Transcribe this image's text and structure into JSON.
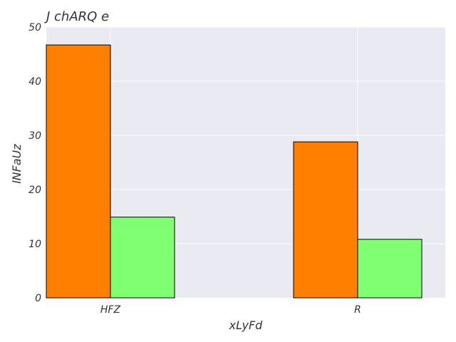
{
  "chart_data": {
    "type": "bar",
    "title": "J chARQ  e",
    "xlabel": "xLyFd",
    "ylabel": "lNFaUz",
    "categories": [
      "HFZ",
      "R"
    ],
    "series": [
      {
        "values": [
          46.7,
          28.8
        ],
        "color": "#ff7f00"
      },
      {
        "values": [
          14.9,
          10.8
        ],
        "color": "#80ff73"
      }
    ],
    "ylim": [
      0,
      50
    ],
    "yticks": [
      0,
      10,
      20,
      30,
      40,
      50
    ],
    "grid": true,
    "background": "#eaeaf2",
    "legend": "none"
  }
}
